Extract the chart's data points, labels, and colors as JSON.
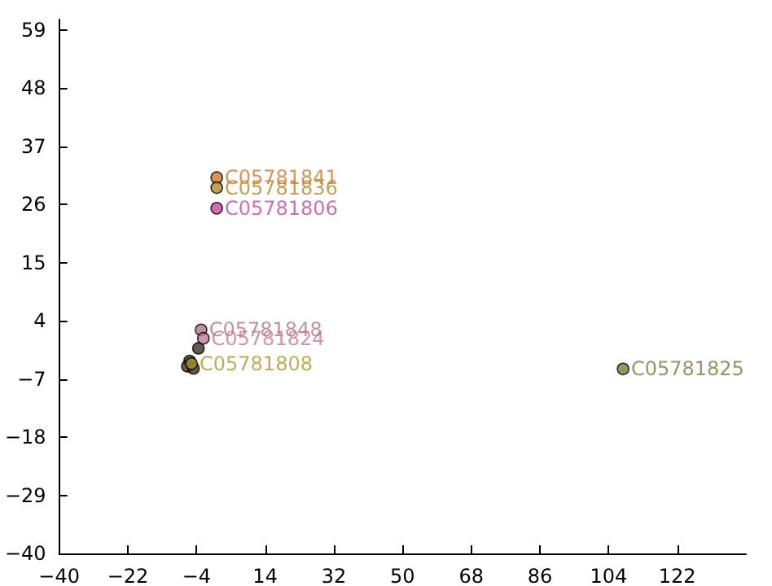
{
  "chart_data": {
    "type": "scatter",
    "xlim": [
      -40,
      140
    ],
    "ylim": [
      -40,
      61
    ],
    "xticks": [
      -40,
      -22,
      -4,
      14,
      32,
      50,
      68,
      86,
      104,
      122
    ],
    "yticks": [
      -40,
      -29,
      -18,
      -7,
      4,
      15,
      26,
      37,
      48,
      59
    ],
    "grid": false,
    "marker": "circle",
    "legend": false,
    "series": [
      {
        "name": "C05781841",
        "color": "#d2782a",
        "x": [
          1.3
        ],
        "values": [
          31.1
        ]
      },
      {
        "name": "C05781836",
        "color": "#b8862b",
        "x": [
          1.3
        ],
        "values": [
          29.2
        ]
      },
      {
        "name": "C05781806",
        "color": "#c8489c",
        "x": [
          1.3
        ],
        "values": [
          25.3
        ]
      },
      {
        "name": "C05781848",
        "color": "#b07888",
        "x": [
          -2.8
        ],
        "values": [
          2.3
        ]
      },
      {
        "name": "C05781824",
        "color": "#c87898",
        "x": [
          -2.2
        ],
        "values": [
          0.7
        ]
      },
      {
        "name": "C05781808",
        "color": "#a89a30",
        "x": [
          -5.3
        ],
        "values": [
          -4.1
        ]
      },
      {
        "name": "C05781825",
        "color": "#7a7a40",
        "x": [
          107.8
        ],
        "values": [
          -5.1
        ]
      },
      {
        "color": "#3a3020",
        "x": [
          -5.8,
          -6.4,
          -4.8,
          -3.5
        ],
        "values": [
          -3.6,
          -4.6,
          -5.0,
          -1.2
        ]
      }
    ]
  }
}
